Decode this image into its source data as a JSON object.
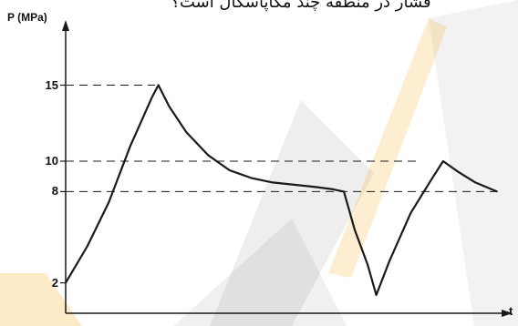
{
  "caption_text": "فشار در منطقه چند مگاپاسکال است؟",
  "chart_data": {
    "type": "line",
    "title": "",
    "ylabel": "P (MPa)",
    "xlabel": "t",
    "yticks": [
      2,
      8,
      10,
      15
    ],
    "ytick_labels": [
      "2",
      "8",
      "10",
      "15"
    ],
    "ylim": [
      0,
      17
    ],
    "xlim": [
      0,
      100
    ],
    "reference_lines": [
      8,
      10,
      15
    ],
    "series": [
      {
        "points": [
          [
            0,
            2
          ],
          [
            5,
            4.4
          ],
          [
            10,
            7.3
          ],
          [
            15,
            11.0
          ],
          [
            20,
            14.2
          ],
          [
            21.5,
            15
          ],
          [
            24,
            13.6
          ],
          [
            28,
            11.9
          ],
          [
            33,
            10.4
          ],
          [
            38,
            9.4
          ],
          [
            43,
            8.9
          ],
          [
            48,
            8.6
          ],
          [
            53,
            8.45
          ],
          [
            58,
            8.3
          ],
          [
            62,
            8.15
          ],
          [
            64.5,
            8
          ],
          [
            67,
            5.5
          ],
          [
            70,
            3.2
          ],
          [
            72,
            1.2
          ],
          [
            75,
            3.4
          ],
          [
            80,
            6.6
          ],
          [
            85,
            8.9
          ],
          [
            87.5,
            10
          ],
          [
            91,
            9.3
          ],
          [
            95,
            8.6
          ],
          [
            100,
            8
          ]
        ]
      }
    ]
  },
  "colors": {
    "curve": "#1a1a1a",
    "axis": "#1a1a1a",
    "watermark_gray": "#5a5a5a",
    "watermark_yellow": "#f5a000"
  }
}
